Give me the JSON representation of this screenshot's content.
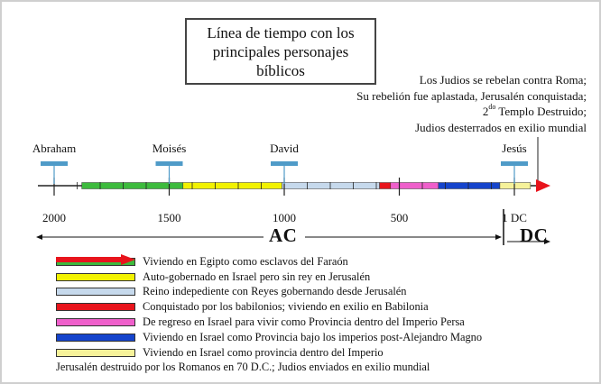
{
  "title": {
    "lines": [
      "Línea de tiempo con los",
      "principales personajes",
      "bíblicos"
    ]
  },
  "top_note": {
    "line1": "Los Judios se rebelan contra Roma;",
    "line2": "Su rebelión fue aplastada, Jerusalén conquistada;",
    "line3_ordinal": "2",
    "line3_sup": "do",
    "line3_rest": " Templo Destruido;",
    "line4": "Judios desterrados en exilio mundial"
  },
  "people": [
    {
      "name": "Abraham",
      "year_bc": 2000
    },
    {
      "name": "Moisés",
      "year_bc": 1500
    },
    {
      "name": "David",
      "year_bc": 1000
    },
    {
      "name": "Jesús",
      "year_bc": 0
    }
  ],
  "ticks": [
    {
      "label": "2000",
      "year_bc": 2000
    },
    {
      "label": "1500",
      "year_bc": 1500
    },
    {
      "label": "1000",
      "year_bc": 1000
    },
    {
      "label": "500",
      "year_bc": 500
    },
    {
      "label": "1 DC",
      "year_bc": 0
    }
  ],
  "era_labels": {
    "bc": "AC",
    "ad": "DC"
  },
  "periods": [
    {
      "color": "#3dbb3d",
      "start_bc": 1880,
      "end_bc": 1440
    },
    {
      "color": "#f2f200",
      "start_bc": 1440,
      "end_bc": 1010
    },
    {
      "color": "#c6d9ec",
      "start_bc": 1010,
      "end_bc": 586
    },
    {
      "color": "#e8141c",
      "start_bc": 586,
      "end_bc": 538
    },
    {
      "color": "#ef5fcb",
      "start_bc": 538,
      "end_bc": 330
    },
    {
      "color": "#1544cc",
      "start_bc": 330,
      "end_bc": 63
    },
    {
      "color": "#f6f29a",
      "start_bc": 63,
      "end_bc": -70
    }
  ],
  "legend": [
    {
      "color": "#3dbb3d",
      "label": "Viviendo en Egipto como esclavos del Faraón"
    },
    {
      "color": "#f2f200",
      "label": "Auto-gobernado en Israel pero sin rey en Jerusalén"
    },
    {
      "color": "#c6d9ec",
      "label": "Reino indepediente con Reyes gobernando desde Jerusalén"
    },
    {
      "color": "#e8141c",
      "label": "Conquistado por los babilonios; viviendo en exilio en Babilonia"
    },
    {
      "color": "#ef5fcb",
      "label": "De regreso en Israel para vivir como Provincia dentro del Imperio Persa"
    },
    {
      "color": "#1544cc",
      "label": "Viviendo en Israel como Provincia bajo los imperios post-Alejandro Magno"
    },
    {
      "color": "#f6f29a",
      "label": "Viviendo en Israel como provincia dentro del Imperio"
    },
    {
      "color": "#e8141c",
      "label": "Jerusalén destruido por los Romanos en 70 D.C.; Judios enviados en exilio mundial",
      "arrow": true
    }
  ],
  "colors": {
    "marker": "#4f9bc8",
    "axis": "#222222"
  }
}
